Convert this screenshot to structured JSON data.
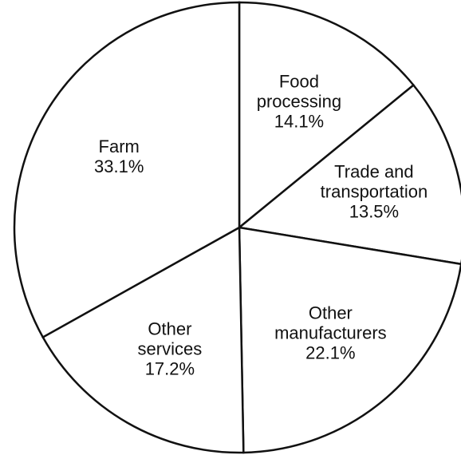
{
  "chart_data": {
    "type": "pie",
    "categories": [
      "Food processing",
      "Trade and transportation",
      "Other manufacturers",
      "Other services",
      "Farm"
    ],
    "values": [
      14.1,
      13.5,
      22.1,
      17.2,
      33.1
    ],
    "value_labels": [
      "14.1%",
      "13.5%",
      "22.1%",
      "17.2%",
      "33.1%"
    ],
    "color": "#ffffff"
  }
}
